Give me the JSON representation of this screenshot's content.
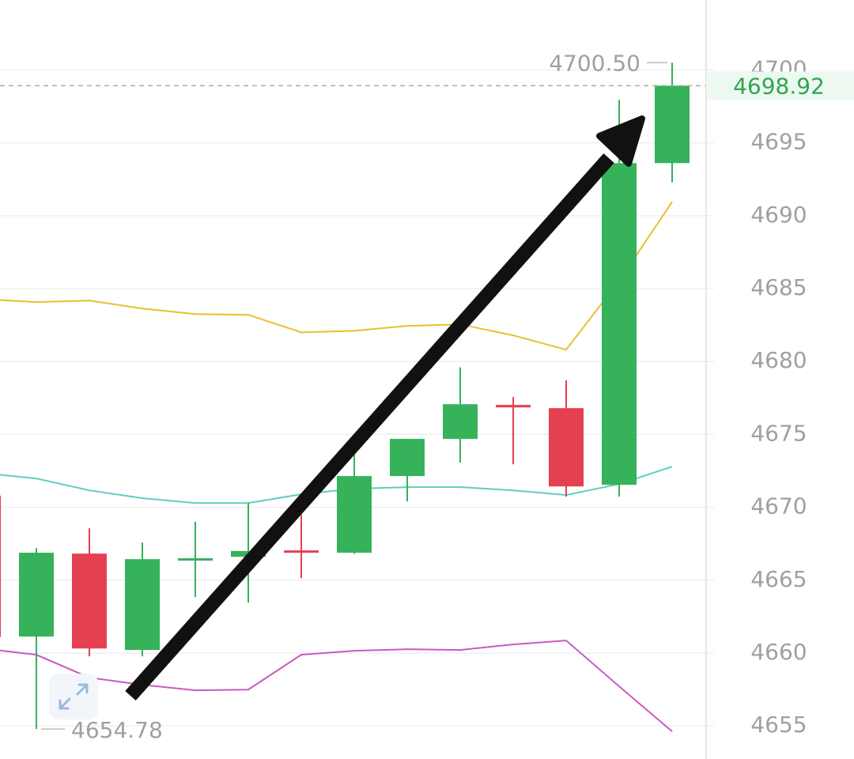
{
  "chart_data": {
    "type": "candlestick",
    "categories": [
      null,
      null,
      null,
      null,
      null,
      null,
      null,
      null,
      null,
      null,
      null,
      null,
      null,
      null
    ],
    "open": [
      4670.8,
      4661.13,
      4666.82,
      4660.21,
      4666.4,
      4666.6,
      4667.04,
      4666.88,
      4672.14,
      4674.69,
      4677.02,
      4676.8,
      4671.54,
      4693.61
    ],
    "close": [
      4661.1,
      4666.88,
      4660.31,
      4666.44,
      4666.5,
      4667.0,
      4666.88,
      4672.14,
      4674.69,
      4677.07,
      4676.85,
      4671.43,
      4693.61,
      4698.92
    ],
    "high": [
      4670.8,
      4667.2,
      4668.56,
      4667.58,
      4669.0,
      4670.3,
      4669.5,
      4673.6,
      4674.7,
      4679.6,
      4677.56,
      4678.7,
      4697.95,
      4700.5
    ],
    "low": [
      4661.0,
      4654.78,
      4659.77,
      4659.77,
      4663.84,
      4663.46,
      4665.14,
      4666.8,
      4670.4,
      4673.06,
      4672.95,
      4670.73,
      4670.73,
      4692.3
    ],
    "up_color": "#35b25a",
    "down_color": "#e5404f",
    "indicators": [
      {
        "color": "#e6c12e",
        "values": [
          4684.28,
          4684.07,
          4684.18,
          4683.63,
          4683.25,
          4683.2,
          4682.0,
          4682.11,
          4682.44,
          4682.55,
          4681.79,
          4680.81,
          4685.53,
          4690.95
        ]
      },
      {
        "color": "#5fcdbf",
        "values": [
          4672.35,
          4671.97,
          4671.16,
          4670.62,
          4670.29,
          4670.29,
          4670.89,
          4671.27,
          4671.38,
          4671.38,
          4671.16,
          4670.84,
          4671.59,
          4672.79
        ]
      },
      {
        "color": "#c75bc2",
        "values": [
          4660.31,
          4659.88,
          4658.31,
          4657.82,
          4657.44,
          4657.49,
          4659.88,
          4660.15,
          4660.26,
          4660.21,
          4660.59,
          4660.86,
          4657.71,
          4654.62
        ]
      }
    ],
    "ylim": [
      4653,
      4704.8
    ],
    "yticks": [
      4655,
      4660,
      4665,
      4670,
      4675,
      4680,
      4685,
      4690,
      4695,
      4700
    ],
    "grid": true,
    "max_label": {
      "value": 4700.5,
      "label": "4700.50"
    },
    "min_label": 4654.78,
    "last_price": 4698.92
  }
}
